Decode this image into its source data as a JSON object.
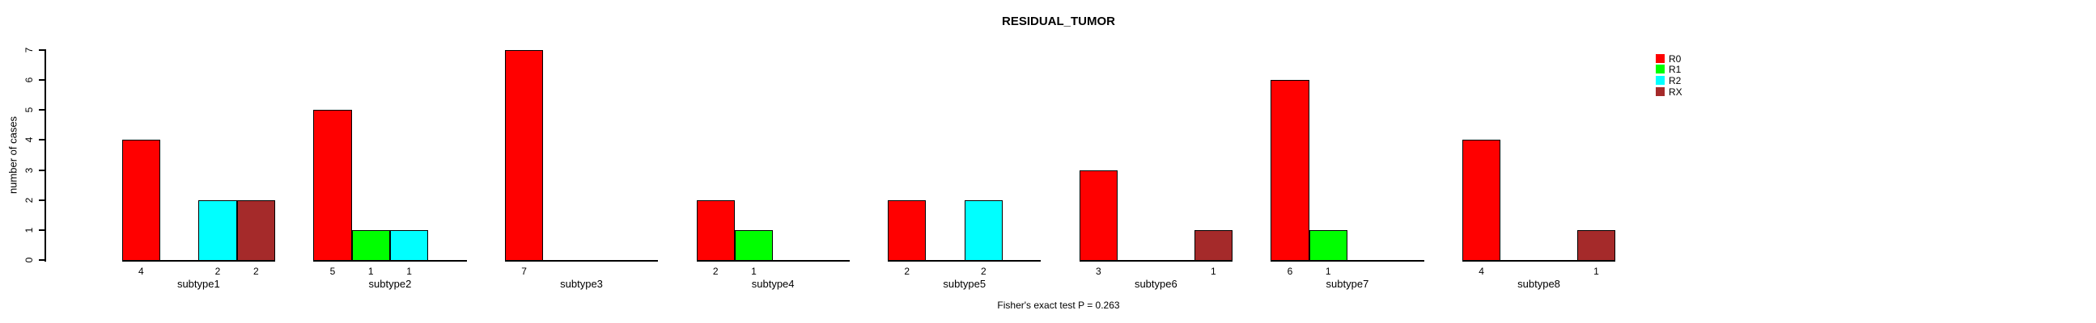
{
  "title": "RESIDUAL_TUMOR",
  "subtitle": "Fisher's exact test P = 0.263",
  "ylabel": "number of cases",
  "legend": {
    "position": "right",
    "entries": [
      {
        "label": "R0",
        "color": "#FF0000"
      },
      {
        "label": "R1",
        "color": "#00FF00"
      },
      {
        "label": "R2",
        "color": "#00FFFF"
      },
      {
        "label": "RX",
        "color": "#A52A2A"
      }
    ]
  },
  "chart_data": {
    "type": "bar",
    "grouped": true,
    "title": "RESIDUAL_TUMOR",
    "xlabel": "",
    "ylabel": "number of cases",
    "ylim": [
      0,
      7
    ],
    "yticks": [
      0,
      1,
      2,
      3,
      4,
      5,
      6,
      7
    ],
    "grid": false,
    "legend_position": "right",
    "categories": [
      "subtype1",
      "subtype2",
      "subtype3",
      "subtype4",
      "subtype5",
      "subtype6",
      "subtype7",
      "subtype8"
    ],
    "series": [
      {
        "name": "R0",
        "color": "#FF0000",
        "values": [
          4,
          5,
          7,
          2,
          2,
          3,
          6,
          4
        ]
      },
      {
        "name": "R1",
        "color": "#00FF00",
        "values": [
          0,
          1,
          0,
          1,
          0,
          0,
          1,
          0
        ]
      },
      {
        "name": "R2",
        "color": "#00FFFF",
        "values": [
          2,
          1,
          0,
          0,
          2,
          0,
          0,
          0
        ]
      },
      {
        "name": "RX",
        "color": "#A52A2A",
        "values": [
          2,
          0,
          0,
          0,
          0,
          1,
          0,
          1
        ]
      }
    ],
    "annotation": "Fisher's exact test P = 0.263",
    "bar_value_labels_shown_for_nonzero_bars": true
  }
}
